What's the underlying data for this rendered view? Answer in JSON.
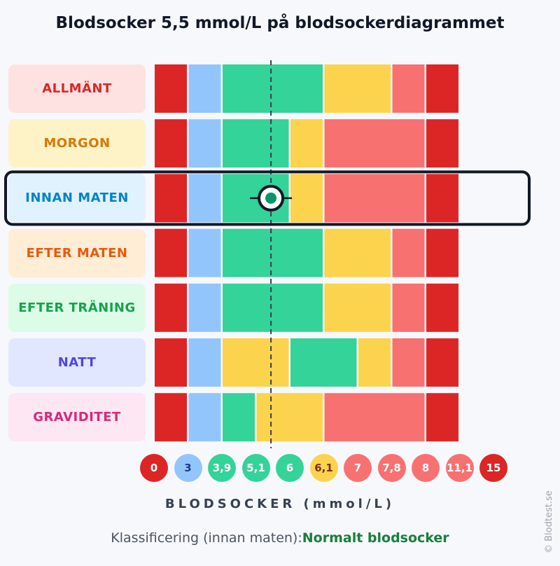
{
  "chart_data": {
    "type": "heatmap",
    "title": "Blodsocker 5,5 mmol/L på blodsockerdiagrammet",
    "xlabel": "BLODSOCKER (mmol/L)",
    "marker_value": 5.5,
    "highlighted_row": "INNAN MATEN",
    "tick_labels": [
      "0",
      "3",
      "3,9",
      "5,1",
      "6",
      "6,1",
      "7",
      "7,8",
      "8",
      "11,1",
      "15"
    ],
    "tick_colors": [
      "#dc2626",
      "#93c5fd",
      "#34d399",
      "#34d399",
      "#34d399",
      "#fcd34d",
      "#f87171",
      "#f87171",
      "#f87171",
      "#f87171",
      "#dc2626"
    ],
    "tick_text_colors": [
      "#ffffff",
      "#1e3a8a",
      "#ffffff",
      "#ffffff",
      "#ffffff",
      "#7c2d12",
      "#ffffff",
      "#ffffff",
      "#ffffff",
      "#ffffff",
      "#ffffff"
    ],
    "rows": [
      {
        "label": "ALLMÄNT",
        "text_color": "#dc2626",
        "bg": "#fee2e2",
        "cells": [
          "#dc2626",
          "#93c5fd",
          "#34d399",
          "#34d399",
          "#34d399",
          "#fcd34d",
          "#fcd34d",
          "#f87171",
          "#dc2626"
        ]
      },
      {
        "label": "MORGON",
        "text_color": "#d97706",
        "bg": "#fef3c7",
        "cells": [
          "#dc2626",
          "#93c5fd",
          "#34d399",
          "#34d399",
          "#fcd34d",
          "#f87171",
          "#f87171",
          "#f87171",
          "#dc2626"
        ]
      },
      {
        "label": "INNAN MATEN",
        "text_color": "#0284c7",
        "bg": "#e0f2fe",
        "cells": [
          "#dc2626",
          "#93c5fd",
          "#34d399",
          "#34d399",
          "#fcd34d",
          "#f87171",
          "#f87171",
          "#f87171",
          "#dc2626"
        ]
      },
      {
        "label": "EFTER MATEN",
        "text_color": "#ea580c",
        "bg": "#ffedd5",
        "cells": [
          "#dc2626",
          "#93c5fd",
          "#34d399",
          "#34d399",
          "#34d399",
          "#fcd34d",
          "#fcd34d",
          "#f87171",
          "#dc2626"
        ]
      },
      {
        "label": "EFTER TRÄNING",
        "text_color": "#16a34a",
        "bg": "#dcfce7",
        "cells": [
          "#dc2626",
          "#93c5fd",
          "#34d399",
          "#34d399",
          "#34d399",
          "#fcd34d",
          "#fcd34d",
          "#f87171",
          "#dc2626"
        ]
      },
      {
        "label": "NATT",
        "text_color": "#4f46e5",
        "bg": "#e0e7ff",
        "cells": [
          "#dc2626",
          "#93c5fd",
          "#fcd34d",
          "#fcd34d",
          "#34d399",
          "#34d399",
          "#fcd34d",
          "#f87171",
          "#dc2626"
        ]
      },
      {
        "label": "GRAVIDITET",
        "text_color": "#db2777",
        "bg": "#fce7f3",
        "cells": [
          "#dc2626",
          "#93c5fd",
          "#34d399",
          "#fcd34d",
          "#fcd34d",
          "#f87171",
          "#f87171",
          "#f87171",
          "#dc2626"
        ]
      }
    ]
  },
  "classification": {
    "label": "Klassificering (innan maten):",
    "value": "Normalt blodsocker",
    "value_color": "#15803d"
  },
  "copyright": "© Blodtest.se"
}
